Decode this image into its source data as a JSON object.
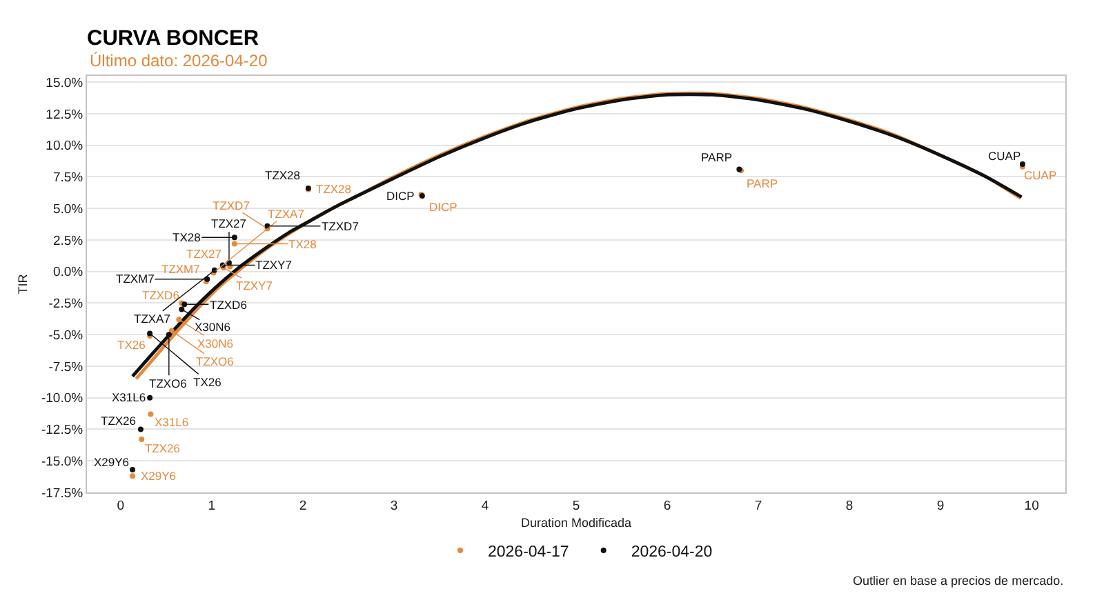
{
  "chart_data": {
    "type": "scatter",
    "title": "CURVA BONCER",
    "subtitle": "Último dato: 2026-04-20",
    "xlabel": "Duration Modificada",
    "ylabel": "TIR",
    "annotations": [
      "Outlier en base a precios de mercado."
    ],
    "series": [
      {
        "type": "line",
        "marker": "none",
        "color": "#e58a3c",
        "x": [
          0.17,
          0.35,
          0.6,
          0.85,
          1.1,
          1.35,
          1.6,
          1.85,
          2.1,
          2.35,
          2.6,
          3.0,
          3.5,
          4.0,
          4.5,
          5.0,
          5.5,
          6.0,
          6.5,
          7.0,
          7.5,
          8.0,
          8.5,
          9.0,
          9.5,
          9.88
        ],
        "values": [
          -8.5,
          -7.0,
          -4.9,
          -2.9,
          -1.1,
          0.4,
          1.8,
          3.0,
          4.1,
          5.1,
          6.0,
          7.5,
          9.2,
          10.7,
          12.0,
          13.0,
          13.7,
          14.1,
          14.1,
          13.7,
          13.0,
          12.0,
          10.8,
          9.2,
          7.5,
          5.8
        ]
      },
      {
        "type": "line",
        "marker": "none",
        "color": "#111111",
        "x": [
          0.13,
          0.35,
          0.6,
          0.85,
          1.1,
          1.35,
          1.6,
          1.85,
          2.1,
          2.35,
          2.6,
          3.0,
          3.5,
          4.0,
          4.5,
          5.0,
          5.5,
          6.0,
          6.5,
          7.0,
          7.5,
          8.0,
          8.5,
          9.0,
          9.5,
          9.89
        ],
        "values": [
          -8.3,
          -6.5,
          -4.5,
          -2.6,
          -0.9,
          0.6,
          1.9,
          3.1,
          4.1,
          5.1,
          6.0,
          7.4,
          9.1,
          10.6,
          11.9,
          12.9,
          13.6,
          14.0,
          14.0,
          13.6,
          12.9,
          11.9,
          10.7,
          9.2,
          7.5,
          5.9
        ]
      },
      {
        "name": "2026-04-17",
        "color": "#e58a3c",
        "x": [
          0.23,
          0.13,
          0.33,
          0.32,
          0.56,
          0.64,
          0.67,
          0.94,
          1.02,
          1.13,
          1.2,
          1.25,
          1.61,
          2.06,
          3.3,
          6.81,
          9.9
        ],
        "values": [
          -13.3,
          -16.2,
          -11.3,
          -5.1,
          -4.7,
          -3.8,
          -2.5,
          -0.8,
          -0.1,
          0.3,
          0.4,
          2.2,
          3.4,
          6.5,
          6.1,
          8.0,
          8.3
        ],
        "value_labels": [
          "TZX26",
          "X29Y6",
          "X31L6",
          "TX26",
          "TZXO6",
          "X30N6",
          "TZXD6",
          "TZXM7",
          "TZXA7",
          "TZXY7",
          "TZX27",
          "TX28",
          "TZXD7",
          "TZX28",
          "DICP",
          "PARP",
          "CUAP"
        ]
      },
      {
        "name": "2026-04-20",
        "color": "#111111",
        "x": [
          0.22,
          0.13,
          0.32,
          0.32,
          0.53,
          0.67,
          0.7,
          0.95,
          1.03,
          1.12,
          1.19,
          1.25,
          1.61,
          2.06,
          3.31,
          6.79,
          9.9
        ],
        "values": [
          -12.5,
          -15.7,
          -10.0,
          -4.9,
          -5.0,
          -3.0,
          -2.6,
          -0.6,
          0.1,
          0.5,
          0.7,
          2.7,
          3.6,
          6.6,
          6.0,
          8.1,
          8.5
        ],
        "value_labels": [
          "TZX26",
          "X29Y6",
          "X31L6",
          "TX26",
          "TZXO6",
          "X30N6",
          "TZXD6",
          "TZXM7",
          "TZXA7",
          "TZXY7",
          "TZX27",
          "TX28",
          "TZXD7",
          "TZX28",
          "DICP",
          "PARP",
          "CUAP"
        ]
      }
    ],
    "xlim": [
      -0.37,
      10.37
    ],
    "ylim": [
      -17.5,
      15.5
    ],
    "xticks": [
      0,
      1,
      2,
      3,
      4,
      5,
      6,
      7,
      8,
      9,
      10
    ],
    "yticks": [
      {
        "value": -17.5,
        "label": "-17.5%"
      },
      {
        "value": -15,
        "label": "-15.0%"
      },
      {
        "value": -12.5,
        "label": "-12.5%"
      },
      {
        "value": -10,
        "label": "-10.0%"
      },
      {
        "value": -7.5,
        "label": "-7.5%"
      },
      {
        "value": -5,
        "label": "-5.0%"
      },
      {
        "value": -2.5,
        "label": "-2.5%"
      },
      {
        "value": 0,
        "label": "0.0%"
      },
      {
        "value": 2.5,
        "label": "2.5%"
      },
      {
        "value": 5,
        "label": "5.0%"
      },
      {
        "value": 7.5,
        "label": "7.5%"
      },
      {
        "value": 10,
        "label": "10.0%"
      },
      {
        "value": 12.5,
        "label": "12.5%"
      },
      {
        "value": 15,
        "label": "15.0%"
      }
    ],
    "grid": "y",
    "legend": "bottom",
    "marker": "circle"
  }
}
